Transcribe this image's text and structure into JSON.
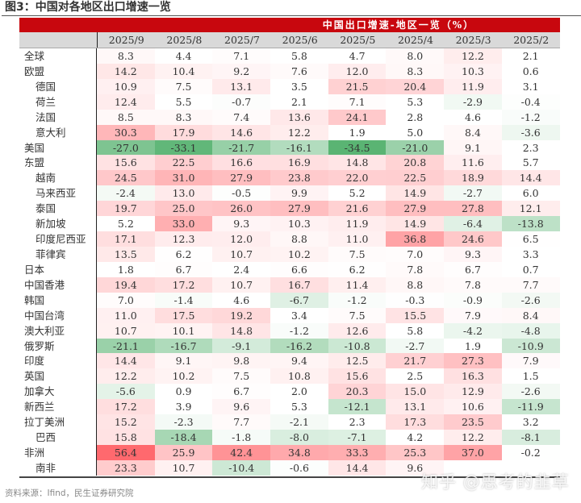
{
  "figure": {
    "title": "图3：中国对各地区出口增速一览",
    "band_title": "中国出口增速-地区一览（%）",
    "source": "资料来源：Ifind，民生证券研究院",
    "watermark": "知乎 @思考的韭草"
  },
  "colors": {
    "band_red": "#c8070e",
    "header_gray": "#d9d9d9",
    "positive_max": "#f26b6e",
    "negative_max": "#5cb87a"
  },
  "table": {
    "columns": [
      "2025/9",
      "2025/8",
      "2025/7",
      "2025/6",
      "2025/5",
      "2025/4",
      "2025/3",
      "2025/2"
    ],
    "rows": [
      {
        "label": "全球",
        "sub": false,
        "values": [
          "8.3",
          "4.4",
          "7.1",
          "5.8",
          "4.7",
          "8.0",
          "12.2",
          "2.1"
        ]
      },
      {
        "label": "欧盟",
        "sub": false,
        "values": [
          "14.2",
          "10.4",
          "9.2",
          "7.6",
          "12.0",
          "8.3",
          "10.3",
          "0.6"
        ]
      },
      {
        "label": "德国",
        "sub": true,
        "values": [
          "10.9",
          "7.5",
          "13.1",
          "3.5",
          "21.5",
          "20.4",
          "11.9",
          "3.1"
        ]
      },
      {
        "label": "荷兰",
        "sub": true,
        "values": [
          "12.4",
          "5.5",
          "-0.7",
          "2.1",
          "7.1",
          "5.3",
          "-2.9",
          "-0.4"
        ]
      },
      {
        "label": "法国",
        "sub": true,
        "values": [
          "8.5",
          "8.3",
          "7.4",
          "13.6",
          "24.1",
          "2.8",
          "4.6",
          "-1.2"
        ]
      },
      {
        "label": "意大利",
        "sub": true,
        "values": [
          "30.3",
          "17.9",
          "14.6",
          "12.2",
          "1.9",
          "5.0",
          "8.4",
          "-3.6"
        ]
      },
      {
        "label": "美国",
        "sub": false,
        "values": [
          "-27.0",
          "-33.1",
          "-21.7",
          "-16.1",
          "-34.5",
          "-21.0",
          "9.1",
          "2.3"
        ]
      },
      {
        "label": "东盟",
        "sub": false,
        "values": [
          "15.6",
          "22.5",
          "16.6",
          "16.9",
          "14.8",
          "20.8",
          "11.6",
          "5.7"
        ]
      },
      {
        "label": "越南",
        "sub": true,
        "values": [
          "24.5",
          "31.0",
          "27.9",
          "23.8",
          "22.0",
          "22.5",
          "18.9",
          "14.4"
        ]
      },
      {
        "label": "马来西亚",
        "sub": true,
        "values": [
          "-2.4",
          "13.0",
          "-0.5",
          "9.9",
          "5.2",
          "14.9",
          "-2.7",
          "6.0"
        ]
      },
      {
        "label": "泰国",
        "sub": true,
        "values": [
          "19.7",
          "25.0",
          "26.0",
          "27.9",
          "21.6",
          "27.9",
          "27.8",
          "12.1"
        ]
      },
      {
        "label": "新加坡",
        "sub": true,
        "values": [
          "5.2",
          "33.0",
          "9.3",
          "10.3",
          "11.9",
          "14.9",
          "-6.4",
          "-13.8"
        ]
      },
      {
        "label": "印度尼西亚",
        "sub": true,
        "values": [
          "17.1",
          "12.3",
          "12.0",
          "8.8",
          "11.0",
          "36.8",
          "24.6",
          "6.5"
        ]
      },
      {
        "label": "菲律宾",
        "sub": true,
        "values": [
          "13.5",
          "6.2",
          "10.7",
          "10.2",
          "7.5",
          "7.0",
          "9.3",
          "3.3"
        ]
      },
      {
        "label": "日本",
        "sub": false,
        "values": [
          "1.8",
          "6.7",
          "2.4",
          "6.6",
          "6.2",
          "7.8",
          "6.7",
          "0.7"
        ]
      },
      {
        "label": "中国香港",
        "sub": false,
        "values": [
          "19.4",
          "17.2",
          "10.7",
          "16.7",
          "11.4",
          "8.8",
          "7.8",
          "7.7"
        ]
      },
      {
        "label": "韩国",
        "sub": false,
        "values": [
          "7.0",
          "-1.4",
          "4.6",
          "-6.7",
          "-1.2",
          "-0.3",
          "-0.9",
          "-2.6"
        ]
      },
      {
        "label": "中国台湾",
        "sub": false,
        "values": [
          "11.0",
          "17.5",
          "19.2",
          "3.4",
          "7.5",
          "15.5",
          "7.9",
          "8.4"
        ]
      },
      {
        "label": "澳大利亚",
        "sub": false,
        "values": [
          "10.7",
          "10.1",
          "14.8",
          "-1.2",
          "12.6",
          "5.8",
          "-4.2",
          "-4.8"
        ]
      },
      {
        "label": "俄罗斯",
        "sub": false,
        "values": [
          "-21.1",
          "-16.7",
          "-9.1",
          "-16.2",
          "-10.8",
          "-2.7",
          "1.9",
          "-10.9"
        ]
      },
      {
        "label": "印度",
        "sub": false,
        "values": [
          "14.4",
          "9.1",
          "9.8",
          "9.4",
          "12.5",
          "21.7",
          "27.3",
          "7.9"
        ]
      },
      {
        "label": "英国",
        "sub": false,
        "values": [
          "12.2",
          "10.2",
          "7.5",
          "10.8",
          "15.6",
          "2.5",
          "16.3",
          "1.5"
        ]
      },
      {
        "label": "加拿大",
        "sub": false,
        "values": [
          "-5.6",
          "0.9",
          "6.7",
          "2.0",
          "20.3",
          "15.0",
          "12.9",
          "-2.6"
        ]
      },
      {
        "label": "新西兰",
        "sub": false,
        "values": [
          "17.2",
          "3.9",
          "9.6",
          "5.3",
          "-12.1",
          "13.1",
          "10.6",
          "-11.9"
        ]
      },
      {
        "label": "拉丁美洲",
        "sub": false,
        "values": [
          "15.2",
          "-2.3",
          "7.7",
          "-2.1",
          "2.3",
          "17.3",
          "23.5",
          "3.2"
        ]
      },
      {
        "label": "巴西",
        "sub": true,
        "values": [
          "15.8",
          "-18.4",
          "-1.8",
          "-8.0",
          "-7.1",
          "4.2",
          "12.2",
          "-8.1"
        ]
      },
      {
        "label": "非洲",
        "sub": false,
        "values": [
          "56.4",
          "25.9",
          "42.4",
          "34.8",
          "33.3",
          "25.3",
          "37.0",
          "-0.2"
        ]
      },
      {
        "label": "南非",
        "sub": true,
        "values": [
          "23.3",
          "10.7",
          "-10.4",
          "-0.6",
          "14.4",
          "9.6",
          "",
          ""
        ]
      }
    ]
  }
}
